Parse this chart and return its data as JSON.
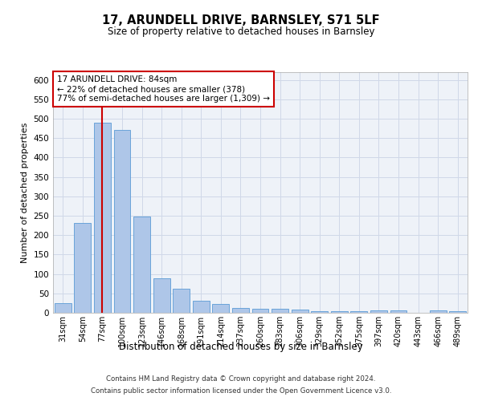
{
  "title": "17, ARUNDELL DRIVE, BARNSLEY, S71 5LF",
  "subtitle": "Size of property relative to detached houses in Barnsley",
  "xlabel": "Distribution of detached houses by size in Barnsley",
  "ylabel": "Number of detached properties",
  "categories": [
    "31sqm",
    "54sqm",
    "77sqm",
    "100sqm",
    "123sqm",
    "146sqm",
    "168sqm",
    "191sqm",
    "214sqm",
    "237sqm",
    "260sqm",
    "283sqm",
    "306sqm",
    "329sqm",
    "352sqm",
    "375sqm",
    "397sqm",
    "420sqm",
    "443sqm",
    "466sqm",
    "489sqm"
  ],
  "values": [
    25,
    232,
    490,
    472,
    248,
    88,
    63,
    30,
    22,
    13,
    11,
    10,
    8,
    5,
    5,
    5,
    6,
    6,
    0,
    6,
    5
  ],
  "bar_color": "#aec6e8",
  "bar_edge_color": "#5b9bd5",
  "grid_color": "#d0d8e8",
  "background_color": "#ffffff",
  "plot_bg_color": "#eef2f8",
  "vline_x": 2,
  "vline_color": "#cc0000",
  "annotation_text": "17 ARUNDELL DRIVE: 84sqm\n← 22% of detached houses are smaller (378)\n77% of semi-detached houses are larger (1,309) →",
  "annotation_box_color": "#cc0000",
  "ylim": [
    0,
    620
  ],
  "yticks": [
    0,
    50,
    100,
    150,
    200,
    250,
    300,
    350,
    400,
    450,
    500,
    550,
    600
  ],
  "footer_line1": "Contains HM Land Registry data © Crown copyright and database right 2024.",
  "footer_line2": "Contains public sector information licensed under the Open Government Licence v3.0."
}
